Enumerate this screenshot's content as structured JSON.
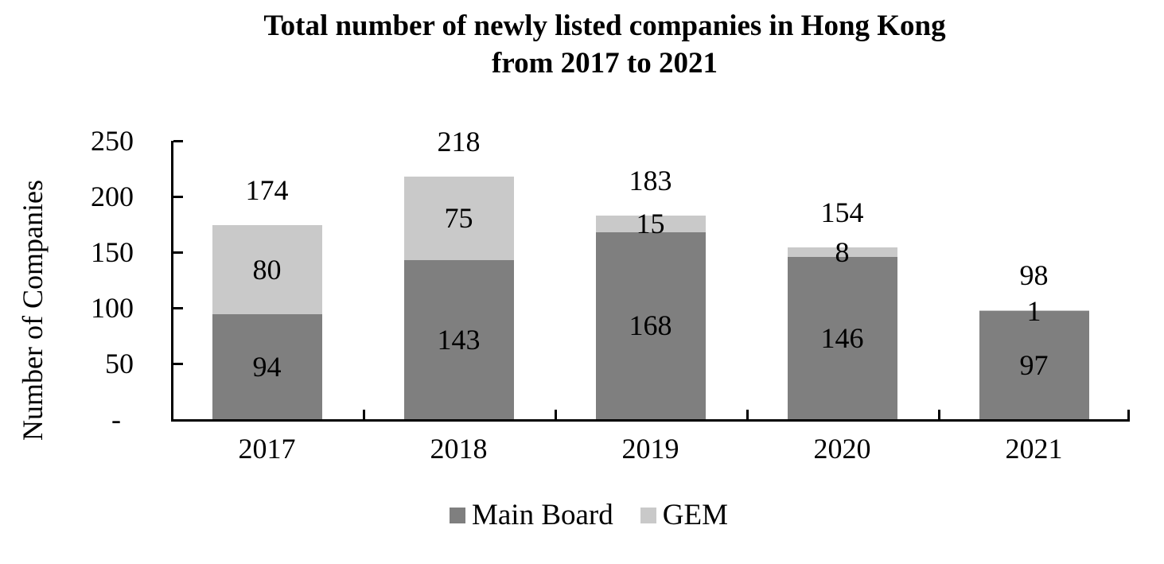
{
  "title": {
    "line1": "Total number of newly listed companies in Hong Kong",
    "line2": "from 2017 to 2021"
  },
  "chart_data": {
    "type": "bar",
    "stacked": true,
    "title": "Total number of newly listed companies in Hong Kong from 2017 to 2021",
    "categories": [
      "2017",
      "2018",
      "2019",
      "2020",
      "2021"
    ],
    "series": [
      {
        "name": "Main Board",
        "color": "#7f7f7f",
        "values": [
          94,
          143,
          168,
          146,
          97
        ]
      },
      {
        "name": "GEM",
        "color": "#c9c9c9",
        "values": [
          80,
          75,
          15,
          8,
          1
        ]
      }
    ],
    "totals": [
      174,
      218,
      183,
      154,
      98
    ],
    "xlabel": "",
    "ylabel": "Number of Companies",
    "ylim": [
      0,
      250
    ],
    "y_ticks": [
      {
        "value": 250,
        "label": "250"
      },
      {
        "value": 200,
        "label": "200"
      },
      {
        "value": 150,
        "label": "150"
      },
      {
        "value": 100,
        "label": "100"
      },
      {
        "value": 50,
        "label": "50"
      },
      {
        "value": 0,
        "label": "-"
      }
    ],
    "grid": false,
    "legend_position": "bottom",
    "axis_color": "#000000",
    "text_color": "#000000",
    "background_color": "#ffffff"
  }
}
